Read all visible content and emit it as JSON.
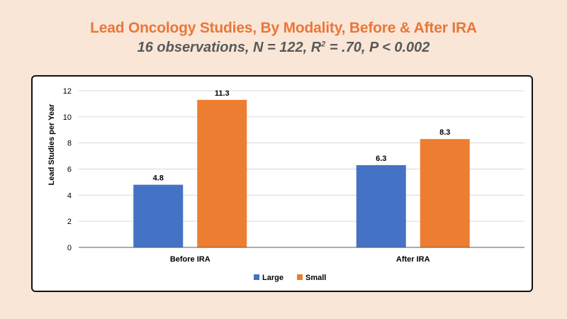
{
  "header": {
    "title": "Lead Oncology Studies, By Modality, Before & After IRA",
    "subtitle_pre": "16 observations, N = 122, R",
    "subtitle_sup": "2",
    "subtitle_post": " = .70, P < 0.002"
  },
  "chart_data": {
    "type": "bar",
    "categories": [
      "Before IRA",
      "After IRA"
    ],
    "series": [
      {
        "name": "Large",
        "values": [
          4.8,
          6.3
        ],
        "color": "#4472c4"
      },
      {
        "name": "Small",
        "values": [
          11.3,
          8.3
        ],
        "color": "#ed7d31"
      }
    ],
    "data_labels": [
      [
        "4.8",
        "6.3"
      ],
      [
        "11.3",
        "8.3"
      ]
    ],
    "ylabel": "Lead Studies per Year",
    "ylim": [
      0,
      12
    ],
    "yticks": [
      0,
      2,
      4,
      6,
      8,
      10,
      12
    ],
    "grid": true,
    "legend_position": "bottom-center"
  }
}
